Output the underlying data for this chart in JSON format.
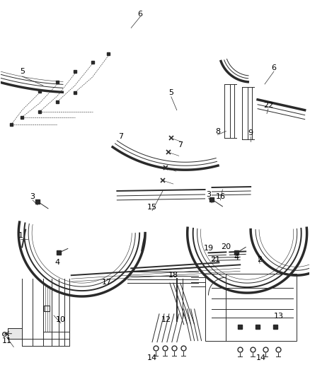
{
  "bg_color": "#ffffff",
  "line_color": "#2a2a2a",
  "label_color": "#000000",
  "fig_width": 4.38,
  "fig_height": 5.33
}
